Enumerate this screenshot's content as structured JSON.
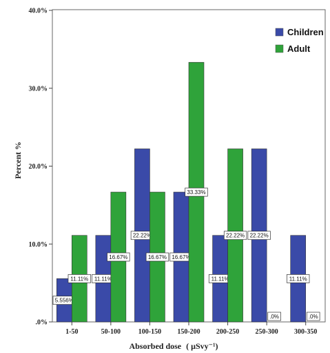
{
  "chart_data": {
    "type": "bar",
    "title": "",
    "xlabel": "Absorbed dose",
    "xlabel_unit": "( μSvy⁻¹)",
    "ylabel": "Percent %",
    "categories": [
      "1-50",
      "50-100",
      "100-150",
      "150-200",
      "200-250",
      "250-300",
      "300-350"
    ],
    "series": [
      {
        "name": "Children",
        "color": "#3a4aa8",
        "values": [
          5.556,
          11.11,
          22.22,
          16.67,
          11.11,
          22.22,
          11.11
        ],
        "labels": [
          "5.556%",
          "11.11%",
          "22.22%",
          "16.67%",
          "11.11%",
          "22.22%",
          "11.11%"
        ]
      },
      {
        "name": "Adult",
        "color": "#2fa33a",
        "values": [
          11.11,
          16.67,
          16.67,
          33.33,
          22.22,
          0,
          0
        ],
        "labels": [
          "11.11%",
          "16.67%",
          "16.67%",
          "33.33%",
          "22.22%",
          ".0%",
          ".0%"
        ]
      }
    ],
    "ylim": [
      0,
      40
    ],
    "yticks": [
      0,
      10,
      20,
      30,
      40
    ],
    "ytick_labels": [
      ".0%",
      "10.0%",
      "20.0%",
      "30.0%",
      "40.0%"
    ],
    "legend_position": "top-right",
    "grid": false
  }
}
